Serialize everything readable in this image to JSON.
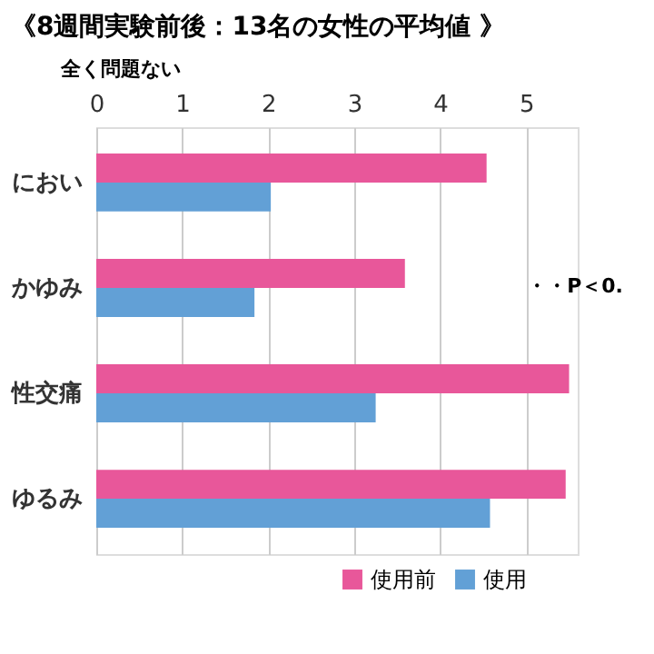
{
  "chart_data": {
    "type": "bar",
    "orientation": "horizontal",
    "title": "《8週間実験前後：13名の女性の平均値 》",
    "xlabel": "全く問題ない",
    "categories": [
      "におい",
      "かゆみ",
      "性交痛",
      "ゆるみ"
    ],
    "series": [
      {
        "name": "使用前",
        "color": "#e8579a",
        "values": [
          4.54,
          3.59,
          5.5,
          5.46
        ]
      },
      {
        "name": "使用",
        "color": "#62a0d6",
        "values": [
          2.03,
          1.84,
          3.25,
          4.58
        ]
      }
    ],
    "xlim": [
      0,
      5.6
    ],
    "xticks": [
      0,
      1,
      2,
      3,
      4,
      5
    ],
    "grid": "x",
    "legend": "bottom right",
    "annotations": [
      "・・P＜0."
    ]
  }
}
